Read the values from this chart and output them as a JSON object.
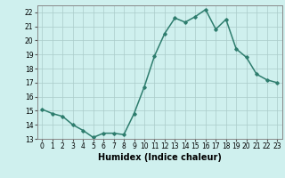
{
  "x": [
    0,
    1,
    2,
    3,
    4,
    5,
    6,
    7,
    8,
    9,
    10,
    11,
    12,
    13,
    14,
    15,
    16,
    17,
    18,
    19,
    20,
    21,
    22,
    23
  ],
  "y": [
    15.1,
    14.8,
    14.6,
    14.0,
    13.6,
    13.1,
    13.4,
    13.4,
    13.3,
    14.8,
    16.7,
    18.9,
    20.5,
    21.6,
    21.3,
    21.7,
    22.2,
    20.8,
    21.5,
    19.4,
    18.8,
    17.6,
    17.2,
    17.0
  ],
  "line_color": "#2e7d6e",
  "marker": "D",
  "marker_size": 1.8,
  "bg_color": "#cff0ee",
  "grid_color": "#aaccca",
  "xlabel": "Humidex (Indice chaleur)",
  "xlim": [
    -0.5,
    23.5
  ],
  "ylim": [
    13,
    22.5
  ],
  "yticks": [
    13,
    14,
    15,
    16,
    17,
    18,
    19,
    20,
    21,
    22
  ],
  "xticks": [
    0,
    1,
    2,
    3,
    4,
    5,
    6,
    7,
    8,
    9,
    10,
    11,
    12,
    13,
    14,
    15,
    16,
    17,
    18,
    19,
    20,
    21,
    22,
    23
  ],
  "tick_fontsize": 5.5,
  "xlabel_fontsize": 7.0,
  "line_width": 1.1
}
